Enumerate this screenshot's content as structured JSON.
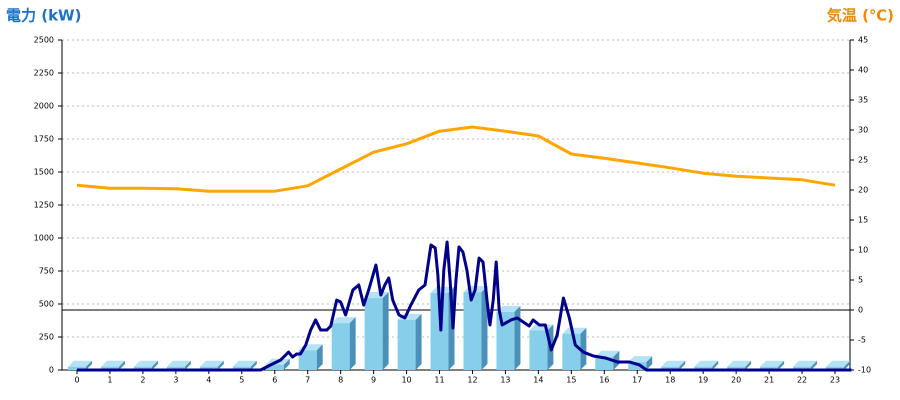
{
  "chart_data": {
    "type": "bar",
    "title_left": "電力 (kW)",
    "title_right": "気温 (℃)",
    "categories": [
      "0",
      "1",
      "2",
      "3",
      "4",
      "5",
      "6",
      "7",
      "8",
      "9",
      "10",
      "11",
      "12",
      "13",
      "14",
      "15",
      "16",
      "17",
      "18",
      "19",
      "20",
      "21",
      "22",
      "23"
    ],
    "ylim": [
      0,
      2500
    ],
    "yticks": [
      0,
      250,
      500,
      750,
      1000,
      1250,
      1500,
      1750,
      2000,
      2250,
      2500
    ],
    "y2lim": [
      -10,
      45
    ],
    "y2ticks": [
      -10,
      -5,
      0,
      5,
      10,
      15,
      20,
      25,
      30,
      35,
      40,
      45
    ],
    "grid": true,
    "series": [
      {
        "type": "bar",
        "color": "#87ceeb",
        "values": [
          25,
          25,
          25,
          25,
          25,
          25,
          40,
          150,
          355,
          545,
          380,
          585,
          590,
          440,
          300,
          275,
          100,
          60,
          25,
          25,
          25,
          25,
          25,
          25
        ]
      },
      {
        "type": "line",
        "color": "#00008b",
        "x": [
          0,
          5.57,
          5.87,
          6.18,
          6.42,
          6.54,
          6.66,
          6.78,
          6.94,
          7.09,
          7.24,
          7.39,
          7.58,
          7.7,
          7.88,
          8.0,
          8.15,
          8.37,
          8.55,
          8.7,
          8.85,
          9.07,
          9.22,
          9.34,
          9.46,
          9.58,
          9.77,
          9.95,
          10.13,
          10.37,
          10.56,
          10.74,
          10.87,
          10.95,
          11.04,
          11.13,
          11.23,
          11.32,
          11.41,
          11.5,
          11.59,
          11.71,
          11.83,
          11.96,
          12.08,
          12.2,
          12.32,
          12.44,
          12.53,
          12.63,
          12.72,
          12.81,
          12.9,
          13.17,
          13.36,
          13.54,
          13.72,
          13.84,
          14.03,
          14.21,
          14.39,
          14.57,
          14.76,
          14.94,
          15.12,
          15.36,
          15.67,
          16.03,
          16.4,
          16.76,
          17.07,
          17.28,
          23.5
        ],
        "values": [
          0,
          0,
          38,
          76,
          136,
          98,
          121,
          121,
          189,
          303,
          379,
          303,
          303,
          333,
          530,
          515,
          417,
          606,
          644,
          492,
          606,
          795,
          568,
          644,
          697,
          530,
          417,
          394,
          492,
          606,
          644,
          947,
          924,
          720,
          303,
          758,
          970,
          682,
          318,
          682,
          932,
          894,
          758,
          530,
          606,
          848,
          818,
          530,
          341,
          530,
          818,
          455,
          341,
          379,
          394,
          364,
          333,
          379,
          341,
          341,
          152,
          265,
          545,
          394,
          189,
          136,
          106,
          91,
          61,
          61,
          38,
          0,
          0
        ]
      },
      {
        "type": "line",
        "axis": "y2",
        "color": "#ffa500",
        "values": [
          20.8,
          20.3,
          20.3,
          20.2,
          19.8,
          19.8,
          19.8,
          20.7,
          23.5,
          26.3,
          27.7,
          29.8,
          30.5,
          29.8,
          29,
          26,
          25.3,
          24.5,
          23.7,
          22.8,
          22.3,
          22,
          21.7,
          20.8
        ]
      }
    ]
  }
}
